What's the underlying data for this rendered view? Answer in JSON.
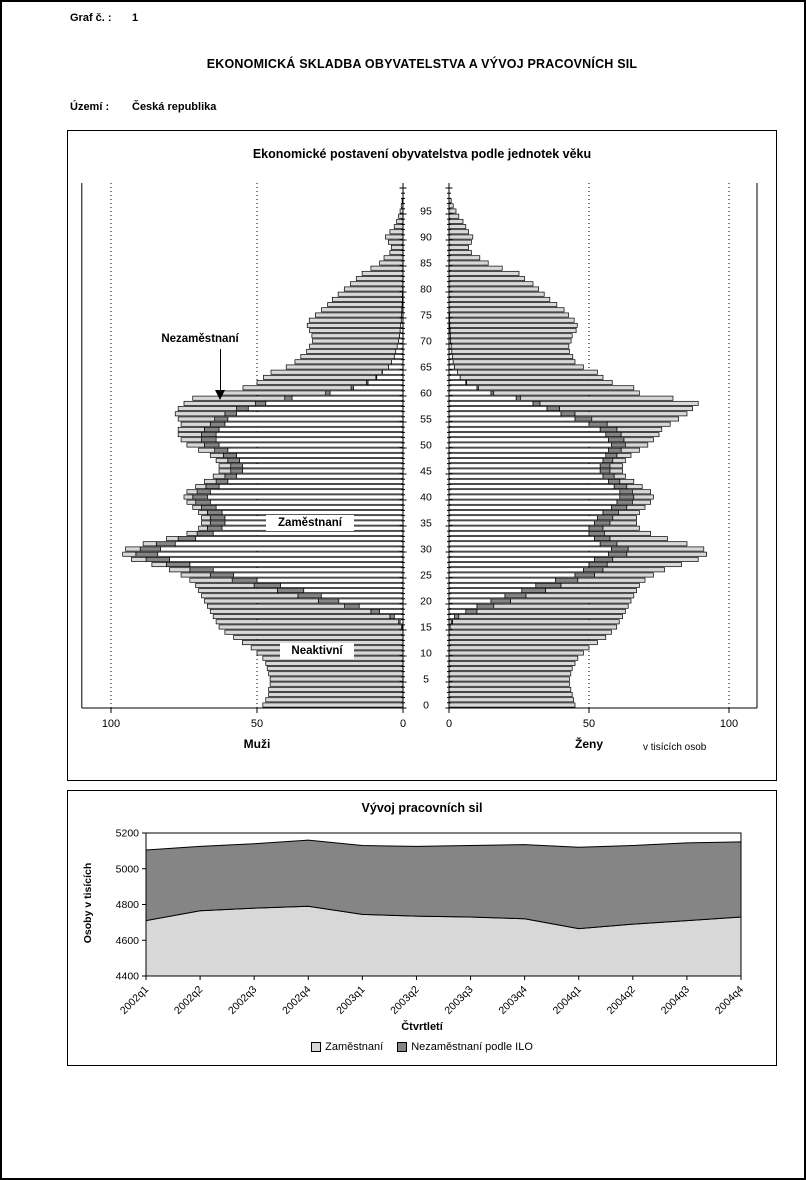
{
  "page": {
    "graf_label": "Graf č. :",
    "graf_number": "1",
    "main_title": "EKONOMICKÁ SKLADBA OBYVATELSTVA A VÝVOJ PRACOVNÍCH SIL",
    "territory_label": "Území :",
    "territory_value": "Česká republika"
  },
  "chart_data": [
    {
      "type": "population-pyramid",
      "title": "Ekonomické postavení obyvatelstva podle jednotek věku",
      "left_label": "Muži",
      "right_label": "Ženy",
      "units_note": "v tisících osob",
      "annotations": {
        "unemployed": "Nezaměstnaní",
        "employed": "Zaměstnaní",
        "inactive": "Neaktivní"
      },
      "colors": {
        "employed": "#ffffff",
        "unemployed": "#858585",
        "inactive": "#d8d8d8"
      },
      "x_ticks": [
        0,
        50,
        100
      ],
      "x_axis_end": 110,
      "age_ticks": [
        0,
        5,
        10,
        15,
        20,
        25,
        30,
        35,
        40,
        45,
        50,
        55,
        60,
        65,
        70,
        75,
        80,
        85,
        90,
        95
      ],
      "ages_max": 97,
      "men": {
        "employed": [
          0,
          0,
          0,
          0,
          0,
          0,
          0,
          0,
          0,
          0,
          0,
          0,
          0,
          0,
          0,
          0.3,
          1,
          3,
          8,
          15,
          22,
          28,
          34,
          42,
          50,
          58,
          65,
          73,
          80,
          84,
          83,
          78,
          71,
          65,
          62,
          61,
          61,
          62,
          64,
          66,
          67,
          66,
          63,
          60,
          57,
          55,
          55,
          56,
          57,
          60,
          63,
          64,
          64,
          63,
          61,
          60,
          57,
          53,
          47,
          38,
          25,
          17,
          12,
          9,
          7,
          5,
          4,
          3,
          2.5,
          2,
          1.5,
          1.2,
          1,
          0.8,
          0.6,
          0.5,
          0.4,
          0.3,
          0.2,
          0.2,
          0.1,
          0,
          0,
          0,
          0,
          0,
          0,
          0,
          0,
          0,
          0,
          0,
          0,
          0,
          0,
          0,
          0,
          0
        ],
        "unemployed": [
          0,
          0,
          0,
          0,
          0,
          0,
          0,
          0,
          0,
          0,
          0,
          0,
          0,
          0,
          0,
          0.2,
          0.5,
          1.5,
          3,
          5,
          7,
          8,
          9,
          9,
          8.5,
          8,
          8,
          8,
          8,
          7.5,
          7,
          6.5,
          6,
          5.5,
          5,
          5,
          5,
          5,
          5,
          5,
          5,
          4.5,
          4.5,
          4,
          4,
          4,
          4,
          4,
          4.5,
          4.5,
          5,
          5,
          5,
          5,
          5,
          4.5,
          4,
          4,
          3.5,
          2.5,
          1.5,
          0.8,
          0.5,
          0.3,
          0.2,
          0,
          0,
          0,
          0,
          0,
          0,
          0,
          0,
          0,
          0,
          0,
          0,
          0,
          0,
          0,
          0,
          0,
          0,
          0,
          0,
          0,
          0,
          0,
          0,
          0,
          0,
          0,
          0,
          0,
          0,
          0,
          0,
          0
        ],
        "inactive": [
          48,
          47,
          46,
          46,
          45.5,
          45.5,
          46,
          46.5,
          47,
          48,
          50,
          52,
          55,
          58,
          61,
          62.5,
          62.5,
          60.5,
          55,
          47,
          39,
          33,
          27,
          20,
          14.5,
          10,
          7,
          5,
          5,
          4.5,
          5,
          4.5,
          4,
          3.5,
          3,
          3,
          3,
          3,
          3,
          3,
          3,
          3.5,
          3.5,
          4,
          4,
          4,
          4,
          4,
          4.5,
          5.5,
          6,
          7,
          8,
          9,
          10,
          12.5,
          17,
          20,
          24.5,
          31.5,
          35.5,
          37,
          37.5,
          38.5,
          38,
          35,
          33,
          32,
          30.5,
          30,
          29.5,
          30,
          31,
          32,
          31.5,
          29.5,
          27.5,
          25.5,
          24,
          22,
          20,
          18,
          16,
          14,
          11,
          8,
          6.5,
          4.5,
          4,
          5,
          6,
          4.5,
          3,
          2.2,
          1.5,
          1,
          0.6,
          0.3
        ]
      },
      "women": {
        "employed": [
          0,
          0,
          0,
          0,
          0,
          0,
          0,
          0,
          0,
          0,
          0,
          0,
          0,
          0,
          0,
          0.2,
          0.8,
          2,
          6,
          10,
          15,
          20,
          26,
          31,
          38,
          45,
          48,
          50,
          52,
          57,
          58,
          54,
          52,
          50,
          50,
          52,
          53,
          55,
          58,
          60,
          61,
          61,
          59,
          57,
          55,
          54,
          54,
          55,
          56,
          57,
          58,
          57,
          56,
          54,
          50,
          45,
          40,
          35,
          30,
          24,
          15,
          10,
          6,
          4,
          3,
          2,
          1.5,
          1.2,
          1,
          0.8,
          0.6,
          0.5,
          0.4,
          0.3,
          0.2,
          0.2,
          0.1,
          0,
          0,
          0,
          0,
          0,
          0,
          0,
          0,
          0,
          0,
          0,
          0,
          0,
          0,
          0,
          0,
          0,
          0,
          0,
          0,
          0
        ],
        "unemployed": [
          0,
          0,
          0,
          0,
          0,
          0,
          0,
          0,
          0,
          0,
          0,
          0,
          0,
          0,
          0,
          0.2,
          0.5,
          1.5,
          4,
          6,
          7,
          7.5,
          8.5,
          9,
          8,
          7,
          7,
          6.5,
          6.5,
          6.5,
          6,
          6,
          5.5,
          5.5,
          5,
          5.5,
          5.5,
          5.5,
          5.5,
          5.5,
          5,
          4.5,
          4.5,
          4,
          4,
          3.5,
          3.5,
          3.5,
          4,
          4.5,
          5,
          5.5,
          5.5,
          6,
          6.5,
          6,
          5,
          4.5,
          2.5,
          1.5,
          1,
          0.5,
          0.3,
          0,
          0,
          0,
          0,
          0,
          0,
          0,
          0,
          0,
          0,
          0,
          0,
          0,
          0,
          0,
          0,
          0,
          0,
          0,
          0,
          0,
          0,
          0,
          0,
          0,
          0,
          0,
          0,
          0,
          0,
          0,
          0,
          0,
          0,
          0
        ],
        "inactive": [
          45,
          44.5,
          44,
          43.5,
          43,
          43,
          43.5,
          44,
          45,
          46,
          48,
          50,
          53,
          56,
          58,
          59.5,
          59.5,
          58.5,
          53,
          48,
          43,
          38.5,
          32.5,
          28,
          24,
          21,
          22,
          26.5,
          30.5,
          28.5,
          27,
          25,
          20.5,
          16.5,
          13,
          9.5,
          8.5,
          7.5,
          6.5,
          6.5,
          7,
          6.5,
          5.5,
          5,
          4,
          4.5,
          4.5,
          4.5,
          5,
          6.5,
          8,
          10.5,
          13.5,
          16,
          22.5,
          31,
          40,
          47.5,
          56.5,
          54.5,
          52,
          55.5,
          52,
          51,
          50,
          46,
          43.5,
          43,
          42,
          42,
          43,
          43.5,
          45,
          45.5,
          44.5,
          42.5,
          41,
          38.5,
          36,
          34,
          32,
          30,
          27,
          25,
          19,
          14,
          11,
          8,
          7,
          8,
          8.5,
          7,
          6,
          5,
          3.5,
          2.5,
          1.5,
          0.8
        ]
      }
    },
    {
      "type": "area",
      "title": "Vývoj pracovních sil",
      "xlabel": "Čtvrtletí",
      "ylabel": "Osoby v tisících",
      "categories": [
        "2002q1",
        "2002q2",
        "2002q3",
        "2002q4",
        "2003q1",
        "2003q2",
        "2003q3",
        "2003q4",
        "2004q1",
        "2004q2",
        "2004q3",
        "2004q4"
      ],
      "series": [
        {
          "name": "Zaměstnaní",
          "color": "#d8d8d8",
          "values": [
            4710,
            4765,
            4780,
            4790,
            4745,
            4735,
            4730,
            4720,
            4665,
            4690,
            4710,
            4730
          ]
        },
        {
          "name": "Nezaměstnaní podle ILO",
          "color": "#858585",
          "values": [
            395,
            360,
            360,
            370,
            385,
            390,
            400,
            415,
            455,
            440,
            435,
            420
          ]
        }
      ],
      "stacked": true,
      "ylim": [
        4400,
        5200
      ],
      "yticks": [
        4400,
        4600,
        4800,
        5000,
        5200
      ],
      "legend_position": "bottom"
    }
  ]
}
